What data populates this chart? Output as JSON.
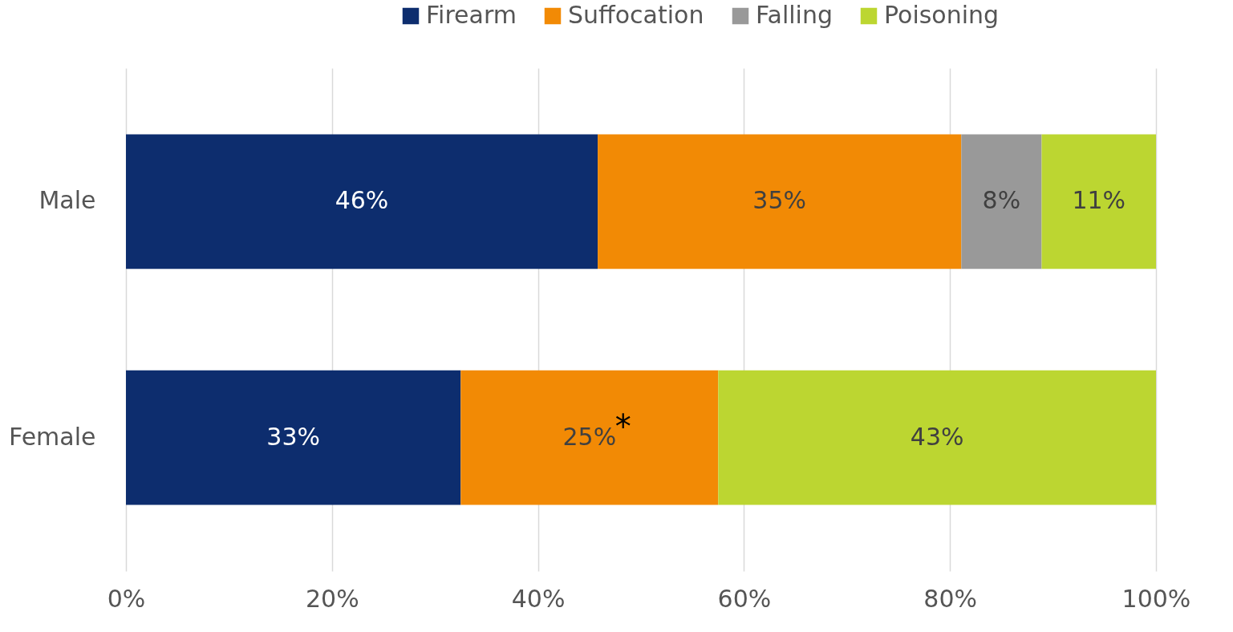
{
  "chart_data": {
    "type": "bar",
    "orientation": "horizontal",
    "stacked": true,
    "categories": [
      "Male",
      "Female"
    ],
    "series": [
      {
        "name": "Firearm",
        "color": "#0d2d6e",
        "values": [
          45.8,
          32.5
        ],
        "value_labels": [
          "46%",
          "33%"
        ]
      },
      {
        "name": "Suffocation",
        "color": "#f28a05",
        "values": [
          35.3,
          25.0
        ],
        "value_labels": [
          "35%",
          "25%"
        ]
      },
      {
        "name": "Falling",
        "color": "#999999",
        "values": [
          7.8,
          null
        ],
        "value_labels": [
          "8%",
          null
        ]
      },
      {
        "name": "Poisoning",
        "color": "#bcd631",
        "values": [
          11.1,
          42.5
        ],
        "value_labels": [
          "11%",
          "43%"
        ]
      }
    ],
    "xlim": [
      0,
      100
    ],
    "xticks": [
      {
        "value": 0,
        "label": "0%"
      },
      {
        "value": 20,
        "label": "20%"
      },
      {
        "value": 40,
        "label": "40%"
      },
      {
        "value": 60,
        "label": "60%"
      },
      {
        "value": 80,
        "label": "80%"
      },
      {
        "value": 100,
        "label": "100%"
      }
    ],
    "grid": "x",
    "legend": "top",
    "annotations": [
      "*"
    ]
  }
}
